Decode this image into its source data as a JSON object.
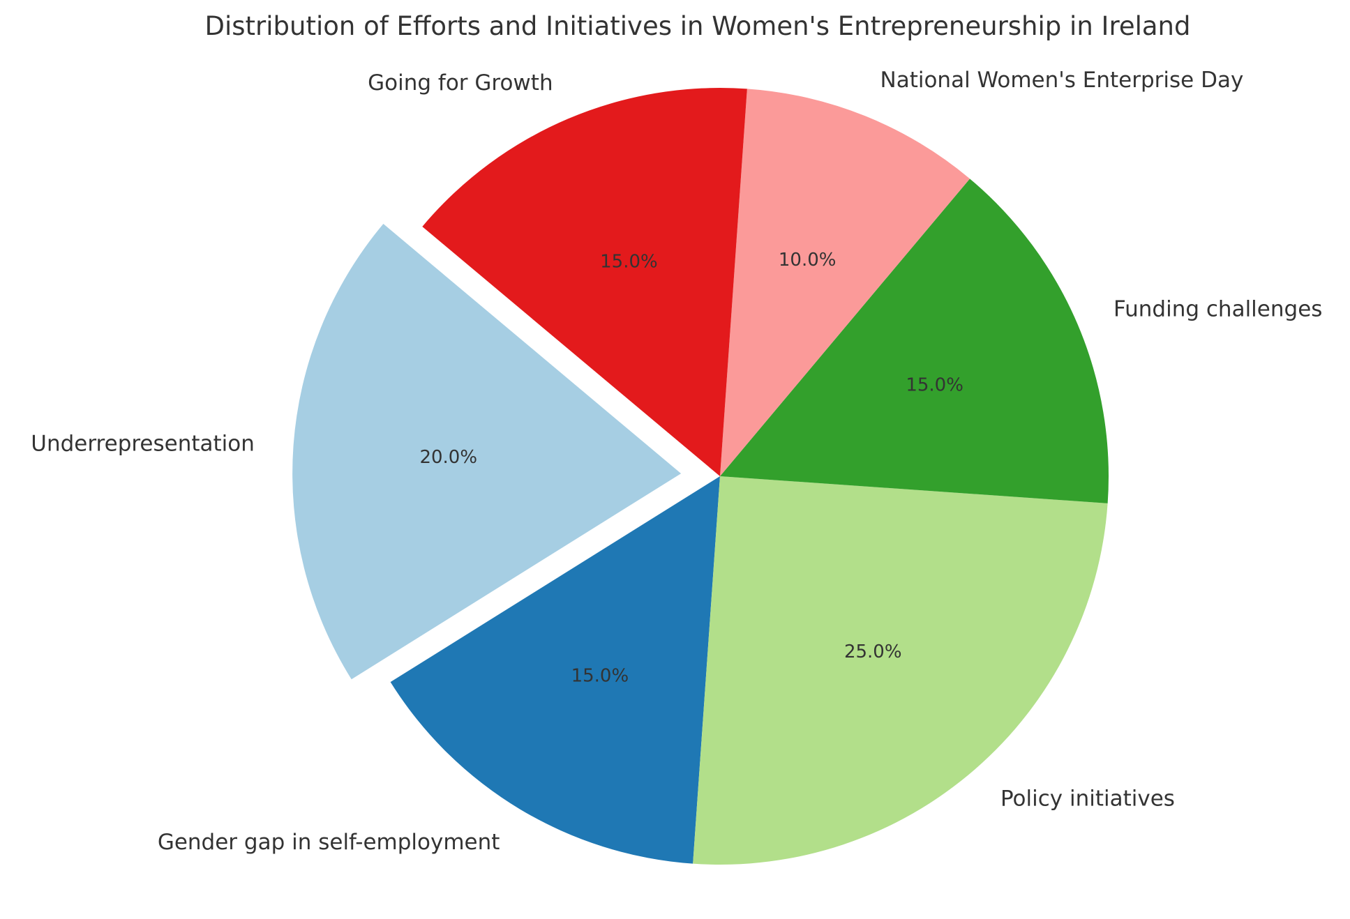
{
  "chart_data": {
    "type": "pie",
    "title": "Distribution of Efforts and Initiatives in Women's Entrepreneurship in Ireland",
    "start_angle_deg": 140,
    "direction": "counterclockwise",
    "exploded": "Underrepresentation",
    "slices": [
      {
        "label": "Underrepresentation",
        "value": 20,
        "pct_label": "20.0%",
        "color": "#a6cee3"
      },
      {
        "label": "Gender gap in self-employment",
        "value": 15,
        "pct_label": "15.0%",
        "color": "#1f78b4"
      },
      {
        "label": "Policy initiatives",
        "value": 25,
        "pct_label": "25.0%",
        "color": "#b2df8a"
      },
      {
        "label": "Funding challenges",
        "value": 15,
        "pct_label": "15.0%",
        "color": "#33a02c"
      },
      {
        "label": "National Women's Enterprise Day",
        "value": 10,
        "pct_label": "10.0%",
        "color": "#fb9a99"
      },
      {
        "label": "Going for Growth",
        "value": 15,
        "pct_label": "15.0%",
        "color": "#e31a1c"
      }
    ]
  }
}
